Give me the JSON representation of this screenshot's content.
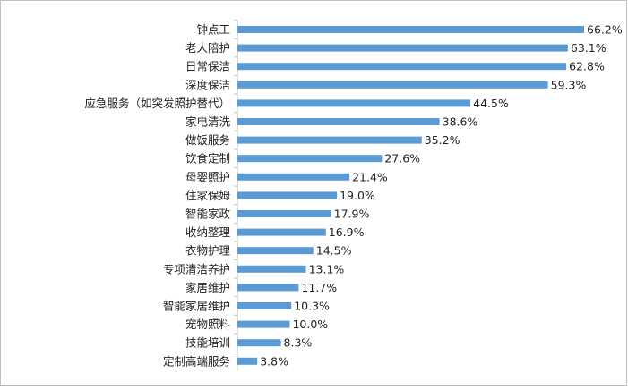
{
  "chart_data": {
    "type": "bar",
    "orientation": "horizontal",
    "color": "#5b9bd5",
    "categories": [
      "钟点工",
      "老人陪护",
      "日常保洁",
      "深度保洁",
      "应急服务（如突发照护替代）",
      "家电清洗",
      "做饭服务",
      "饮食定制",
      "母婴照护",
      "住家保姆",
      "智能家政",
      "收纳整理",
      "衣物护理",
      "专项清洁养护",
      "家居维护",
      "智能家居维护",
      "宠物照料",
      "技能培训",
      "定制高端服务"
    ],
    "values": [
      66.2,
      63.1,
      62.8,
      59.3,
      44.5,
      38.6,
      35.2,
      27.6,
      21.4,
      19.0,
      17.9,
      16.9,
      14.5,
      13.1,
      11.7,
      10.3,
      10.0,
      8.3,
      3.8
    ],
    "value_labels": [
      "66.2%",
      "63.1%",
      "62.8%",
      "59.3%",
      "44.5%",
      "38.6%",
      "35.2%",
      "27.6%",
      "21.4%",
      "19.0%",
      "17.9%",
      "16.9%",
      "14.5%",
      "13.1%",
      "11.7%",
      "10.3%",
      "10.0%",
      "8.3%",
      "3.8%"
    ]
  }
}
